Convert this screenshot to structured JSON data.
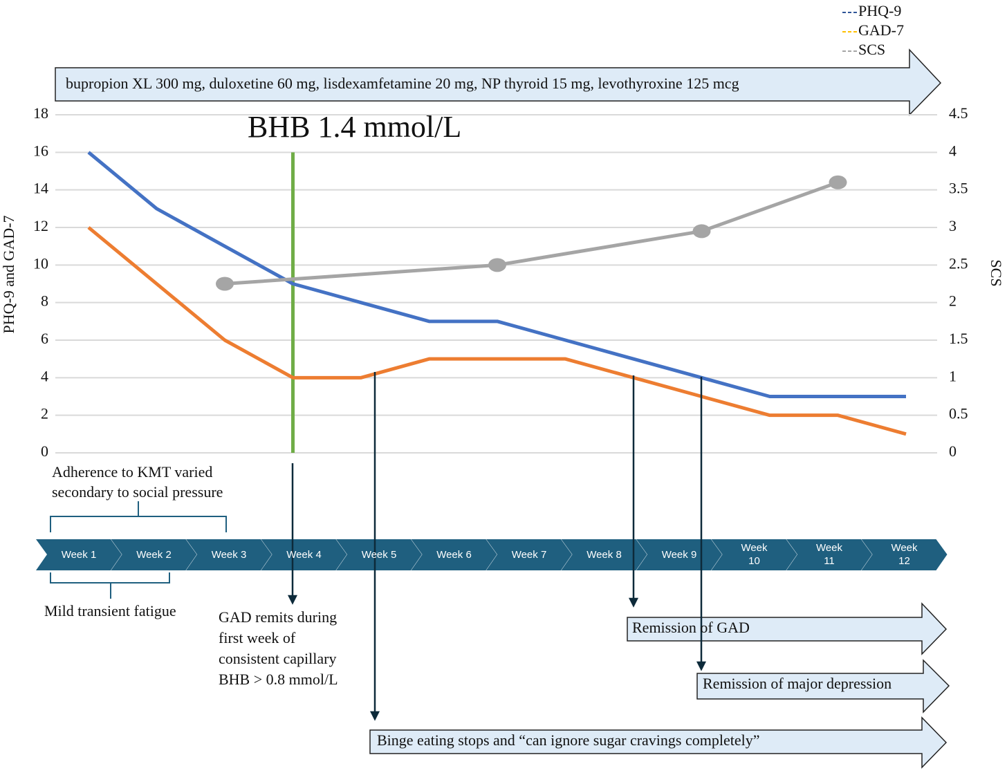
{
  "chart_data": {
    "type": "line",
    "medications": "bupropion XL 300 mg, duloxetine 60 mg, lisdexamfetamine 20 mg, NP thyroid 15 mg, levothyroxine 125 mcg",
    "ylabel": "PHQ-9  and  GAD-7",
    "y2label": "SCS",
    "x": [
      0,
      1,
      2,
      3,
      4,
      5,
      6,
      7,
      8,
      9,
      10,
      11,
      12
    ],
    "xlim": [
      0,
      12
    ],
    "ylim": [
      0,
      18
    ],
    "yticks": [
      0,
      2,
      4,
      6,
      8,
      10,
      12,
      14,
      16,
      18
    ],
    "y2lim": [
      0,
      4.5
    ],
    "y2ticks": [
      0,
      0.5,
      1,
      1.5,
      2,
      2.5,
      3,
      3.5,
      4,
      4.5
    ],
    "grid": true,
    "legend": "top right",
    "series": [
      {
        "name": "PHQ-9",
        "color": "#4472c4",
        "legend_color": "#2f5597",
        "values": [
          16,
          13,
          11,
          9,
          8,
          7,
          7,
          6,
          5,
          4,
          3,
          3,
          3
        ]
      },
      {
        "name": "GAD-7",
        "color": "#ed7d31",
        "legend_color": "#ffc000",
        "values": [
          12,
          9,
          6,
          4,
          4,
          5,
          5,
          5,
          4,
          3,
          2,
          2,
          1
        ]
      },
      {
        "name": "SCS",
        "color": "#a5a5a5",
        "legend_color": "#a5a5a5",
        "axis": "y2",
        "markers": true,
        "x": [
          2,
          6,
          9,
          11
        ],
        "values": [
          2.25,
          2.5,
          2.95,
          3.6
        ]
      }
    ],
    "marker_line": {
      "label": "BHB 1.4 mmol/L",
      "color": "#70ad47",
      "x": 3,
      "y": [
        0,
        16
      ]
    },
    "weeks": [
      "Week 1",
      "Week 2",
      "Week 3",
      "Week 4",
      "Week 5",
      "Week 6",
      "Week 7",
      "Week 8",
      "Week 9",
      "Week 10",
      "Week 11",
      "Week 12"
    ],
    "notes": {
      "adherence": [
        "Adherence to KMT varied",
        "secondary to social pressure"
      ],
      "fatigue": "Mild transient fatigue",
      "gad_remits": [
        "GAD remits during",
        "first week of",
        "consistent capillary",
        "BHB > 0.8 mmol/L"
      ],
      "remission_gad": "Remission of GAD",
      "remission_mdd": "Remission of major depression",
      "binge": "Binge eating stops and “can ignore sugar cravings completely”"
    }
  }
}
